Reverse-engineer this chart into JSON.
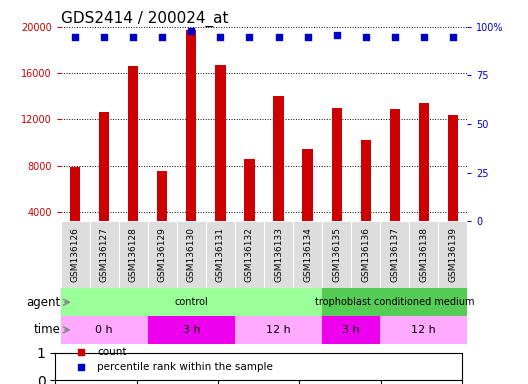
{
  "title": "GDS2414 / 200024_at",
  "samples": [
    "GSM136126",
    "GSM136127",
    "GSM136128",
    "GSM136129",
    "GSM136130",
    "GSM136131",
    "GSM136132",
    "GSM136133",
    "GSM136134",
    "GSM136135",
    "GSM136136",
    "GSM136137",
    "GSM136138",
    "GSM136139"
  ],
  "counts": [
    7900,
    12600,
    16600,
    7500,
    19700,
    16700,
    8600,
    14000,
    9400,
    13000,
    10200,
    12900,
    13400,
    12400
  ],
  "percentile_ranks": [
    95,
    95,
    95,
    95,
    98,
    95,
    95,
    95,
    95,
    96,
    95,
    95,
    95,
    95
  ],
  "bar_color": "#cc0000",
  "dot_color": "#0000cc",
  "ylim_left": [
    3200,
    20000
  ],
  "ylim_right": [
    0,
    100
  ],
  "yticks_left": [
    4000,
    8000,
    12000,
    16000,
    20000
  ],
  "yticks_right": [
    0,
    25,
    50,
    75,
    100
  ],
  "agent_segments": [
    {
      "text": "control",
      "start": 0,
      "end": 9,
      "color": "#99ff99"
    },
    {
      "text": "trophoblast conditioned medium",
      "start": 9,
      "end": 14,
      "color": "#55cc55"
    }
  ],
  "time_segments": [
    {
      "text": "0 h",
      "start": 0,
      "end": 3,
      "color": "#ffaaff"
    },
    {
      "text": "3 h",
      "start": 3,
      "end": 6,
      "color": "#ee00ee"
    },
    {
      "text": "12 h",
      "start": 6,
      "end": 9,
      "color": "#ffaaff"
    },
    {
      "text": "3 h",
      "start": 9,
      "end": 11,
      "color": "#ee00ee"
    },
    {
      "text": "12 h",
      "start": 11,
      "end": 14,
      "color": "#ffaaff"
    }
  ],
  "bar_width": 0.35,
  "tick_cell_color": "#dddddd",
  "title_fontsize": 11,
  "tick_fontsize": 7,
  "label_fontsize": 8.5,
  "row_fontsize": 8
}
